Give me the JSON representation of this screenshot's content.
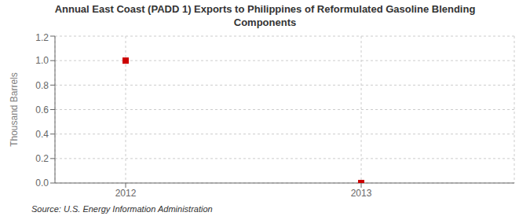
{
  "chart_data": {
    "type": "scatter",
    "title": "Annual East Coast (PADD 1) Exports to Philippines of Reformulated Gasoline Blending\nComponents",
    "ylabel": "Thousand Barrels",
    "annotations": [
      "Source: U.S. Energy Information Administration"
    ],
    "x": [
      2012,
      2013
    ],
    "values": [
      1.0,
      0.0
    ],
    "color": "#cc0000",
    "marker": "square",
    "xlim": [
      2011.7,
      2013.65
    ],
    "xticks": [
      2012,
      2013
    ],
    "ylim": [
      0.0,
      1.2
    ],
    "yticks": [
      {
        "value": 0.0,
        "label": "0.0"
      },
      0.2,
      0.4,
      0.6,
      0.8,
      {
        "value": 1.0,
        "label": "1.0"
      },
      1.2
    ],
    "grid": true
  }
}
